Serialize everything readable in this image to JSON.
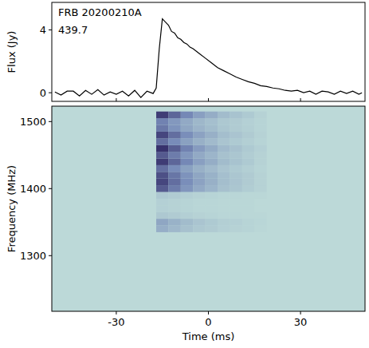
{
  "chart_data": [
    {
      "type": "line",
      "y_label": "Flux (Jy)",
      "annotations": [
        "FRB 20200210A",
        "439.7"
      ],
      "x": [
        -50,
        -48,
        -46,
        -44,
        -42,
        -40,
        -38,
        -36,
        -34,
        -32,
        -30,
        -28,
        -26,
        -24,
        -22,
        -20,
        -18,
        -17,
        -16,
        -15,
        -14,
        -13,
        -12,
        -11,
        -10,
        -9,
        -8,
        -7,
        -6,
        -5,
        -3,
        -1,
        1,
        3,
        5,
        7,
        9,
        11,
        13,
        15,
        17,
        19,
        21,
        23,
        25,
        27,
        29,
        31,
        33,
        35,
        37,
        39,
        41,
        43,
        45,
        47,
        49,
        50
      ],
      "values": [
        0.05,
        -0.15,
        0.1,
        0.1,
        -0.2,
        0.15,
        -0.1,
        0.2,
        -0.15,
        0.05,
        -0.1,
        0.1,
        -0.2,
        0.15,
        -0.3,
        0.1,
        -0.05,
        0.3,
        2.8,
        4.7,
        4.5,
        4.3,
        3.9,
        3.8,
        3.5,
        3.4,
        3.2,
        3.1,
        2.9,
        2.8,
        2.5,
        2.2,
        1.9,
        1.6,
        1.4,
        1.2,
        1.0,
        0.85,
        0.7,
        0.6,
        0.45,
        0.4,
        0.3,
        0.25,
        0.15,
        0.1,
        0.15,
        0.0,
        0.1,
        -0.1,
        0.1,
        0.05,
        -0.1,
        0.1,
        -0.05,
        0.1,
        -0.1,
        0.0
      ],
      "color": "#000000",
      "xlim": [
        -51,
        51
      ],
      "ylim": [
        -0.55,
        5.75
      ],
      "xticks": [
        -30,
        0,
        30
      ],
      "yticks": [
        0,
        4
      ],
      "tick_labels": "y"
    },
    {
      "type": "heatmap",
      "x_label": "Time (ms)",
      "y_label": "Frequency (MHz)",
      "x_edges": [
        -17,
        -13,
        -9,
        -5,
        -1,
        3,
        7,
        11,
        15,
        19
      ],
      "y_edges": [
        1335,
        1345,
        1355,
        1365,
        1375,
        1385,
        1395,
        1405,
        1415,
        1425,
        1435,
        1445,
        1455,
        1465,
        1475,
        1485,
        1495,
        1505,
        1515
      ],
      "values": [
        [
          0.25,
          0.19,
          0.14,
          0.1,
          0.08,
          0.05,
          0.04,
          0.03,
          0.01
        ],
        [
          0.3,
          0.23,
          0.17,
          0.12,
          0.09,
          0.06,
          0.05,
          0.03,
          0.02
        ],
        [
          0.1,
          0.08,
          0.06,
          0.04,
          0.03,
          0.02,
          0.02,
          0.01,
          0.01
        ],
        [
          0.05,
          0.04,
          0.03,
          0.02,
          0.02,
          0.01,
          0.01,
          0.01,
          0
        ],
        [
          0.05,
          0.04,
          0.03,
          0.02,
          0.02,
          0.01,
          0.01,
          0.01,
          0
        ],
        [
          0.1,
          0.08,
          0.06,
          0.04,
          0.03,
          0.02,
          0.02,
          0.01,
          0.01
        ],
        [
          0.7,
          0.53,
          0.39,
          0.28,
          0.21,
          0.14,
          0.11,
          0.07,
          0.04
        ],
        [
          0.8,
          0.6,
          0.44,
          0.32,
          0.24,
          0.16,
          0.12,
          0.08,
          0.04
        ],
        [
          0.75,
          0.56,
          0.41,
          0.3,
          0.23,
          0.15,
          0.11,
          0.08,
          0.04
        ],
        [
          0.6,
          0.45,
          0.33,
          0.24,
          0.18,
          0.12,
          0.09,
          0.06,
          0.03
        ],
        [
          0.85,
          0.64,
          0.47,
          0.34,
          0.26,
          0.17,
          0.13,
          0.09,
          0.04
        ],
        [
          0.7,
          0.53,
          0.39,
          0.28,
          0.21,
          0.14,
          0.11,
          0.07,
          0.04
        ],
        [
          0.9,
          0.68,
          0.5,
          0.36,
          0.27,
          0.18,
          0.14,
          0.09,
          0.05
        ],
        [
          0.6,
          0.45,
          0.33,
          0.24,
          0.18,
          0.12,
          0.09,
          0.06,
          0.03
        ],
        [
          0.8,
          0.6,
          0.44,
          0.32,
          0.24,
          0.16,
          0.12,
          0.08,
          0.04
        ],
        [
          0.55,
          0.41,
          0.3,
          0.22,
          0.17,
          0.11,
          0.08,
          0.06,
          0.03
        ],
        [
          0.5,
          0.38,
          0.28,
          0.2,
          0.15,
          0.1,
          0.08,
          0.05,
          0.03
        ],
        [
          0.85,
          0.64,
          0.47,
          0.34,
          0.26,
          0.17,
          0.13,
          0.09,
          0.04
        ]
      ],
      "clim": [
        0,
        1
      ],
      "xlim": [
        -51,
        51
      ],
      "ylim": [
        1217,
        1523
      ],
      "xticks": [
        -30,
        0,
        30
      ],
      "yticks": [
        1300,
        1400,
        1500
      ]
    }
  ]
}
